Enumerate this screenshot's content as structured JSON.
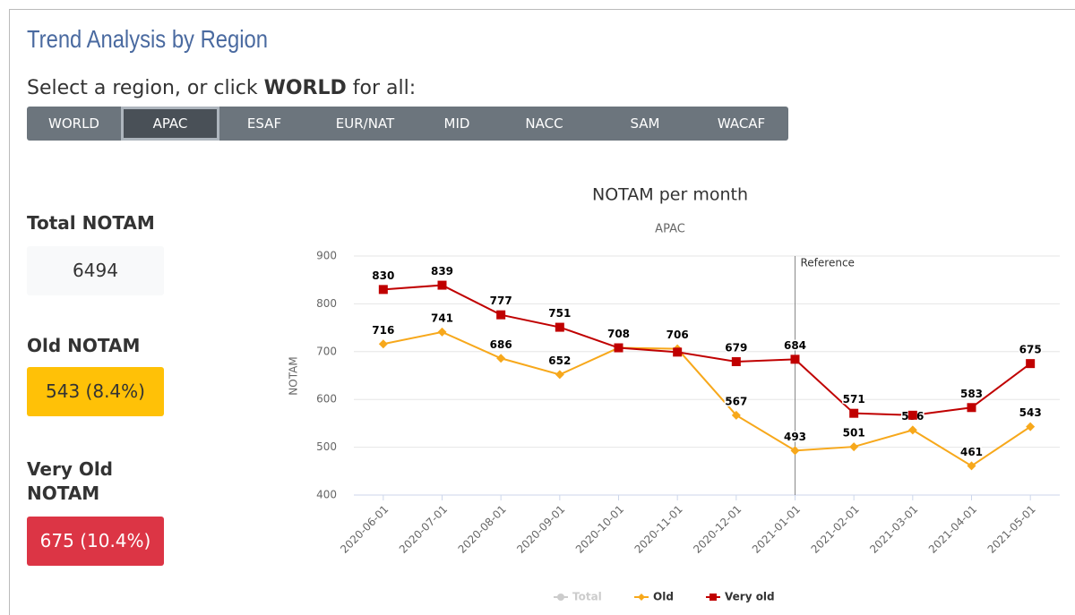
{
  "header": {
    "title": "Trend Analysis by Region",
    "prompt_before": "Select a region, or click ",
    "prompt_bold": "WORLD",
    "prompt_after": " for all:"
  },
  "tabs": [
    "WORLD",
    "APAC",
    "ESAF",
    "EUR/NAT",
    "MID",
    "NACC",
    "SAM",
    "WACAF"
  ],
  "active_tab": 1,
  "stats": [
    {
      "label": "Total NOTAM",
      "value": "6494",
      "color": "#f8f9fa",
      "text_color": "#333333"
    },
    {
      "label": "Old NOTAM",
      "value": "543 (8.4%)",
      "color": "#ffc107",
      "text_color": "#333333"
    },
    {
      "label": "Very Old NOTAM",
      "value": "675 (10.4%)",
      "color": "#dc3545",
      "text_color": "#ffffff"
    }
  ],
  "chart_data": {
    "type": "line",
    "title": "NOTAM per month",
    "subtitle": "APAC",
    "y_label": "NOTAM",
    "categories": [
      "2020-06-01",
      "2020-07-01",
      "2020-08-01",
      "2020-09-01",
      "2020-10-01",
      "2020-11-01",
      "2020-12-01",
      "2021-01-01",
      "2021-02-01",
      "2021-03-01",
      "2021-04-01",
      "2021-05-01"
    ],
    "series": [
      {
        "name": "Total",
        "color": "#cccccc",
        "visible": false
      },
      {
        "name": "Old",
        "color": "#f7a81b",
        "marker": "diamond",
        "values": [
          716,
          741,
          686,
          652,
          708,
          706,
          567,
          493,
          501,
          536,
          461,
          543
        ],
        "value_labels": [
          "716",
          "741",
          "686",
          "652",
          "708",
          "706",
          "567",
          "493",
          "501",
          "536",
          "461",
          "543"
        ]
      },
      {
        "name": "Very old",
        "color": "#c00000",
        "marker": "square",
        "values": [
          830,
          839,
          777,
          751,
          708,
          699,
          679,
          684,
          571,
          567,
          583,
          675
        ],
        "value_labels": [
          "830",
          "839",
          "777",
          "751",
          null,
          null,
          "679",
          "684",
          "571",
          null,
          "583",
          "675"
        ]
      }
    ],
    "reference": {
      "at": "2021-01-01",
      "label": "Reference"
    },
    "ylim": [
      400,
      900
    ],
    "yticks": [
      400,
      500,
      600,
      700,
      800,
      900
    ],
    "grid": true,
    "legend": "bottom"
  }
}
